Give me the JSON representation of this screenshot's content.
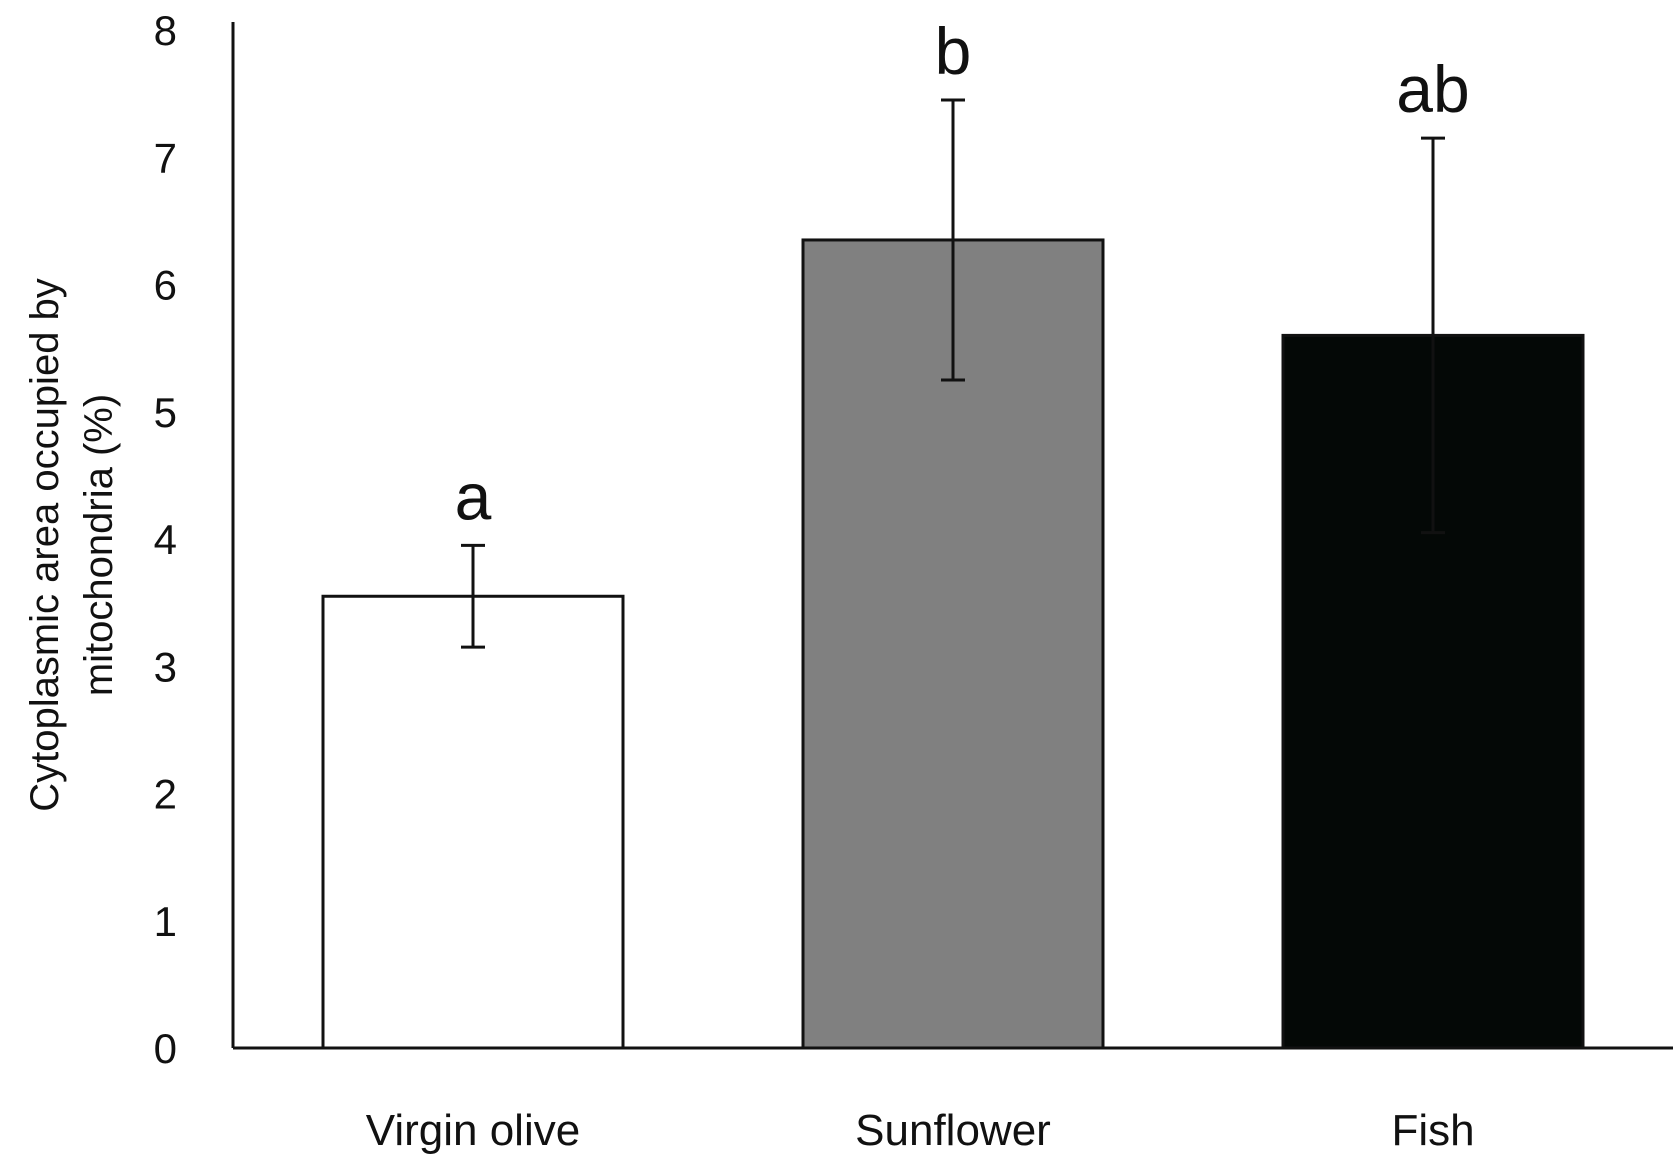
{
  "chart_data": {
    "type": "bar",
    "title": "",
    "xlabel": "",
    "ylabel": "Cytoplasmic area occupied by mitochondria (%)",
    "ylabel_lines": [
      "Cytoplasmic area occupied by",
      "mitochondria (%)"
    ],
    "ylim": [
      0,
      8
    ],
    "yticks": [
      0,
      1,
      2,
      3,
      4,
      5,
      6,
      7,
      8
    ],
    "grid": false,
    "legend": "none",
    "categories": [
      "Virgin olive",
      "Sunflower",
      "Fish"
    ],
    "values": [
      3.55,
      6.35,
      5.6
    ],
    "errors": [
      0.4,
      1.1,
      1.55
    ],
    "significance": [
      "a",
      "b",
      "ab"
    ],
    "colors": [
      "#ffffff",
      "#808080",
      "#040806"
    ],
    "edge_color": "#111111"
  }
}
